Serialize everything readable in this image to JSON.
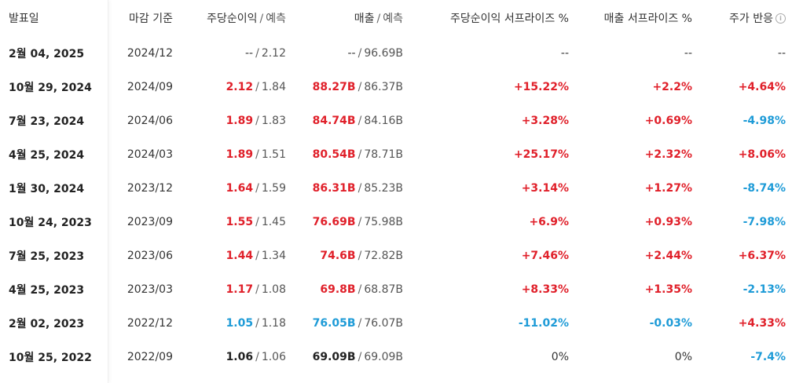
{
  "headers": {
    "date": "발표일",
    "period": "마감 기준",
    "eps": "주당순이익",
    "eps_forecast": "예측",
    "revenue": "매출",
    "revenue_forecast": "예측",
    "eps_surprise": "주당순이익 서프라이즈 %",
    "revenue_surprise": "매출 서프라이즈 %",
    "price_reaction": "주가 반응",
    "separator": "/",
    "info_icon": "info-icon"
  },
  "colors": {
    "positive": "#e0202a",
    "negative": "#1e9bd7",
    "neutral": "#222222"
  },
  "rows": [
    {
      "date": "2월 04, 2025",
      "period": "2024/12",
      "eps": "--",
      "eps_status": "plain",
      "eps_forecast": "2.12",
      "revenue": "--",
      "revenue_status": "plain",
      "revenue_forecast": "96.69B",
      "eps_surprise": "--",
      "eps_surprise_status": "plain",
      "revenue_surprise": "--",
      "revenue_surprise_status": "plain",
      "price_reaction": "--",
      "price_reaction_status": "plain"
    },
    {
      "date": "10월 29, 2024",
      "period": "2024/09",
      "eps": "2.12",
      "eps_status": "pos",
      "eps_forecast": "1.84",
      "revenue": "88.27B",
      "revenue_status": "pos",
      "revenue_forecast": "86.37B",
      "eps_surprise": "+15.22%",
      "eps_surprise_status": "pos",
      "revenue_surprise": "+2.2%",
      "revenue_surprise_status": "pos",
      "price_reaction": "+4.64%",
      "price_reaction_status": "pos"
    },
    {
      "date": "7월 23, 2024",
      "period": "2024/06",
      "eps": "1.89",
      "eps_status": "pos",
      "eps_forecast": "1.83",
      "revenue": "84.74B",
      "revenue_status": "pos",
      "revenue_forecast": "84.16B",
      "eps_surprise": "+3.28%",
      "eps_surprise_status": "pos",
      "revenue_surprise": "+0.69%",
      "revenue_surprise_status": "pos",
      "price_reaction": "-4.98%",
      "price_reaction_status": "neg"
    },
    {
      "date": "4월 25, 2024",
      "period": "2024/03",
      "eps": "1.89",
      "eps_status": "pos",
      "eps_forecast": "1.51",
      "revenue": "80.54B",
      "revenue_status": "pos",
      "revenue_forecast": "78.71B",
      "eps_surprise": "+25.17%",
      "eps_surprise_status": "pos",
      "revenue_surprise": "+2.32%",
      "revenue_surprise_status": "pos",
      "price_reaction": "+8.06%",
      "price_reaction_status": "pos"
    },
    {
      "date": "1월 30, 2024",
      "period": "2023/12",
      "eps": "1.64",
      "eps_status": "pos",
      "eps_forecast": "1.59",
      "revenue": "86.31B",
      "revenue_status": "pos",
      "revenue_forecast": "85.23B",
      "eps_surprise": "+3.14%",
      "eps_surprise_status": "pos",
      "revenue_surprise": "+1.27%",
      "revenue_surprise_status": "pos",
      "price_reaction": "-8.74%",
      "price_reaction_status": "neg"
    },
    {
      "date": "10월 24, 2023",
      "period": "2023/09",
      "eps": "1.55",
      "eps_status": "pos",
      "eps_forecast": "1.45",
      "revenue": "76.69B",
      "revenue_status": "pos",
      "revenue_forecast": "75.98B",
      "eps_surprise": "+6.9%",
      "eps_surprise_status": "pos",
      "revenue_surprise": "+0.93%",
      "revenue_surprise_status": "pos",
      "price_reaction": "-7.98%",
      "price_reaction_status": "neg"
    },
    {
      "date": "7월 25, 2023",
      "period": "2023/06",
      "eps": "1.44",
      "eps_status": "pos",
      "eps_forecast": "1.34",
      "revenue": "74.6B",
      "revenue_status": "pos",
      "revenue_forecast": "72.82B",
      "eps_surprise": "+7.46%",
      "eps_surprise_status": "pos",
      "revenue_surprise": "+2.44%",
      "revenue_surprise_status": "pos",
      "price_reaction": "+6.37%",
      "price_reaction_status": "pos"
    },
    {
      "date": "4월 25, 2023",
      "period": "2023/03",
      "eps": "1.17",
      "eps_status": "pos",
      "eps_forecast": "1.08",
      "revenue": "69.8B",
      "revenue_status": "pos",
      "revenue_forecast": "68.87B",
      "eps_surprise": "+8.33%",
      "eps_surprise_status": "pos",
      "revenue_surprise": "+1.35%",
      "revenue_surprise_status": "pos",
      "price_reaction": "-2.13%",
      "price_reaction_status": "neg"
    },
    {
      "date": "2월 02, 2023",
      "period": "2022/12",
      "eps": "1.05",
      "eps_status": "neg",
      "eps_forecast": "1.18",
      "revenue": "76.05B",
      "revenue_status": "neg",
      "revenue_forecast": "76.07B",
      "eps_surprise": "-11.02%",
      "eps_surprise_status": "neg",
      "revenue_surprise": "-0.03%",
      "revenue_surprise_status": "neg",
      "price_reaction": "+4.33%",
      "price_reaction_status": "pos"
    },
    {
      "date": "10월 25, 2022",
      "period": "2022/09",
      "eps": "1.06",
      "eps_status": "neu",
      "eps_forecast": "1.06",
      "revenue": "69.09B",
      "revenue_status": "neu",
      "revenue_forecast": "69.09B",
      "eps_surprise": "0%",
      "eps_surprise_status": "plain",
      "revenue_surprise": "0%",
      "revenue_surprise_status": "plain",
      "price_reaction": "-7.4%",
      "price_reaction_status": "neg"
    }
  ]
}
